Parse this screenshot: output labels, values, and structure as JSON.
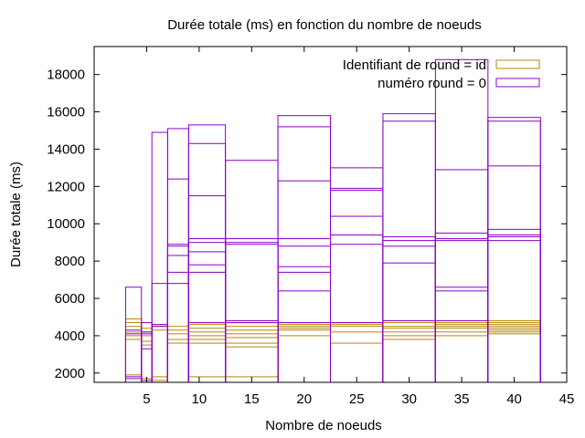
{
  "chart_data": {
    "type": "bar",
    "title": "Durée totale (ms) en fonction du nombre de noeuds",
    "xlabel": "Nombre de noeuds",
    "ylabel": "Durée totale (ms)",
    "xlim": [
      0,
      45
    ],
    "ylim": [
      1500,
      19500
    ],
    "xticks": [
      5,
      10,
      15,
      20,
      25,
      30,
      35,
      40,
      45
    ],
    "yticks": [
      2000,
      4000,
      6000,
      8000,
      10000,
      12000,
      14000,
      16000,
      18000
    ],
    "grid": false,
    "legend_position": "top-right",
    "categories": [
      4,
      5,
      6,
      8,
      10,
      15,
      20,
      25,
      30,
      35,
      40
    ],
    "bin_edges": [
      [
        3,
        4.5
      ],
      [
        4.5,
        5.5
      ],
      [
        5.5,
        7
      ],
      [
        7,
        9
      ],
      [
        9,
        12.5
      ],
      [
        12.5,
        17.5
      ],
      [
        17.5,
        22.5
      ],
      [
        22.5,
        27.5
      ],
      [
        27.5,
        32.5
      ],
      [
        32.5,
        37.5
      ],
      [
        37.5,
        42.5
      ]
    ],
    "series": [
      {
        "name": "Identifiant de round = id",
        "color": "#b8860b",
        "values": [
          [
            1900,
            3800,
            4000,
            4200,
            4500,
            4700,
            4900
          ],
          [
            1700,
            3500,
            3700,
            4000,
            4200,
            4400
          ],
          [
            1600,
            1800,
            4300,
            4500,
            4600
          ],
          [
            3600,
            3800,
            4100,
            4300,
            4500
          ],
          [
            1800,
            3600,
            3800,
            4000,
            4200,
            4400,
            4600,
            4700
          ],
          [
            1800,
            3400,
            3600,
            3900,
            4100,
            4300,
            4500,
            4700
          ],
          [
            4000,
            4300,
            4400,
            4500,
            4600,
            4700
          ],
          [
            3600,
            4200,
            4500,
            4600,
            4700
          ],
          [
            3800,
            4000,
            4200,
            4400,
            4500,
            4700
          ],
          [
            4000,
            4200,
            4400,
            4500,
            4600,
            4700
          ],
          [
            4100,
            4200,
            4300,
            4400,
            4500,
            4600,
            4700,
            4800
          ]
        ]
      },
      {
        "name": "numéro round = 0",
        "color": "#8a00c8",
        "values": [
          [
            1700,
            1800,
            4100,
            4300,
            6600
          ],
          [
            1600,
            3300,
            4100,
            4200,
            4700
          ],
          [
            1500,
            4500,
            4600,
            6800,
            14900
          ],
          [
            6800,
            7400,
            8300,
            8800,
            8900,
            12400,
            15100
          ],
          [
            4700,
            7400,
            7800,
            8500,
            9000,
            9200,
            11500,
            14300,
            15300
          ],
          [
            4800,
            4700,
            8900,
            9000,
            9200,
            13400
          ],
          [
            4700,
            6400,
            7400,
            7700,
            8800,
            9200,
            12300,
            15200,
            15800
          ],
          [
            4700,
            8900,
            9400,
            10400,
            11800,
            11900,
            13000
          ],
          [
            4800,
            7900,
            8800,
            9100,
            9300,
            15500,
            15900
          ],
          [
            4800,
            6400,
            6600,
            9100,
            9200,
            9500,
            12900,
            18800
          ],
          [
            9100,
            9300,
            9400,
            9700,
            13100,
            15500,
            15700
          ]
        ]
      }
    ]
  }
}
